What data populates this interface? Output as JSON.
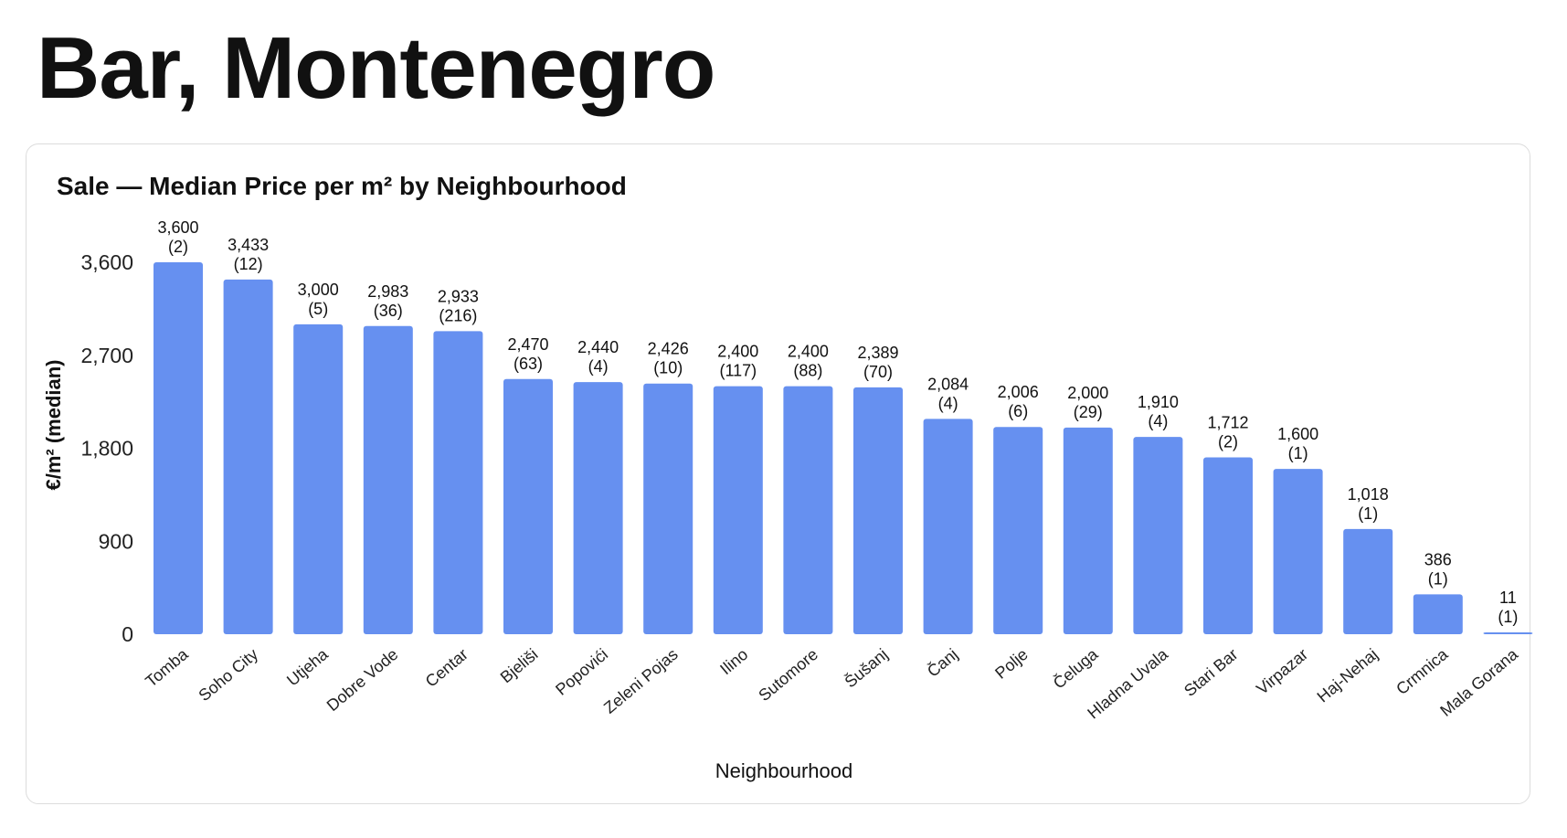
{
  "page": {
    "title": "Bar, Montenegro"
  },
  "colors": {
    "bar": "#6690f0",
    "text": "#111111",
    "card_border": "#dcdcdc"
  },
  "chart_data": {
    "type": "bar",
    "title": "Sale — Median Price per m² by Neighbourhood",
    "xlabel": "Neighbourhood",
    "ylabel": "€/m² (median)",
    "ylim": [
      0,
      3600
    ],
    "yticks": [
      0,
      900,
      1800,
      2700,
      3600
    ],
    "ytick_labels": [
      "0",
      "900",
      "1,800",
      "2,700",
      "3,600"
    ],
    "grid": false,
    "categories": [
      "Tomba",
      "Soho City",
      "Utjeha",
      "Dobre Vode",
      "Centar",
      "Bjeliši",
      "Popovići",
      "Zeleni Pojas",
      "Ilino",
      "Sutomore",
      "Šušanj",
      "Čanj",
      "Polje",
      "Čeluga",
      "Hladna Uvala",
      "Stari Bar",
      "Virpazar",
      "Haj-Nehaj",
      "Crmnica",
      "Mala Gorana"
    ],
    "values": [
      3600,
      3433,
      3000,
      2983,
      2933,
      2470,
      2440,
      2426,
      2400,
      2400,
      2389,
      2084,
      2006,
      2000,
      1910,
      1712,
      1600,
      1018,
      386,
      11
    ],
    "value_labels": [
      "3,600",
      "3,433",
      "3,000",
      "2,983",
      "2,933",
      "2,470",
      "2,440",
      "2,426",
      "2,400",
      "2,400",
      "2,389",
      "2,084",
      "2,006",
      "2,000",
      "1,910",
      "1,712",
      "1,600",
      "1,018",
      "386",
      "11"
    ],
    "counts": [
      "(2)",
      "(12)",
      "(5)",
      "(36)",
      "(216)",
      "(63)",
      "(4)",
      "(10)",
      "(117)",
      "(88)",
      "(70)",
      "(4)",
      "(6)",
      "(29)",
      "(4)",
      "(2)",
      "(1)",
      "(1)",
      "(1)",
      "(1)"
    ]
  }
}
